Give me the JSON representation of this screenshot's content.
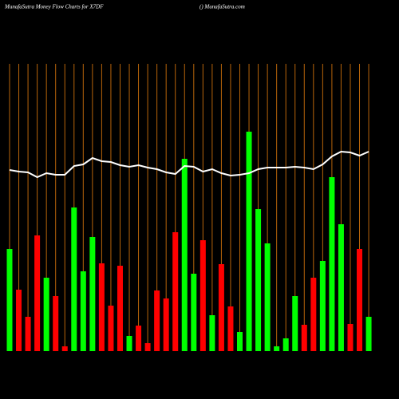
{
  "chart_data": {
    "type": "bar",
    "title": "MunafaSutra  Money Flow  Charts for X7DF",
    "subtitle": "() MunafaSutra.com",
    "categories": [
      null,
      null,
      null,
      null,
      null,
      null,
      null,
      null,
      null,
      null,
      null,
      null,
      null,
      null,
      null,
      null,
      null,
      null,
      null,
      null,
      null,
      null,
      null,
      null,
      null,
      null,
      null,
      null,
      null,
      null,
      null,
      null,
      null,
      null,
      null,
      null,
      null,
      null,
      null,
      null
    ],
    "values": [
      128,
      77,
      43,
      145,
      92,
      69,
      6,
      180,
      100,
      143,
      110,
      57,
      107,
      19,
      32,
      10,
      76,
      66,
      149,
      241,
      97,
      139,
      45,
      109,
      56,
      24,
      275,
      178,
      135,
      6,
      16,
      69,
      33,
      92,
      113,
      218,
      159,
      34,
      128,
      43
    ],
    "colors": [
      "#00ff00",
      "#ff0000",
      "#ff0000",
      "#ff0000",
      "#00ff00",
      "#ff0000",
      "#ff0000",
      "#00ff00",
      "#00ff00",
      "#00ff00",
      "#ff0000",
      "#ff0000",
      "#ff0000",
      "#00ff00",
      "#ff0000",
      "#ff0000",
      "#ff0000",
      "#ff0000",
      "#ff0000",
      "#00ff00",
      "#00ff00",
      "#ff0000",
      "#00ff00",
      "#ff0000",
      "#ff0000",
      "#00ff00",
      "#00ff00",
      "#00ff00",
      "#00ff00",
      "#00ff00",
      "#00ff00",
      "#00ff00",
      "#ff0000",
      "#ff0000",
      "#00ff00",
      "#00ff00",
      "#00ff00",
      "#ff0000",
      "#ff0000",
      "#00ff00"
    ],
    "line": {
      "color": "#ffffff",
      "values": [
        227,
        225,
        224,
        218,
        223,
        221,
        221,
        232,
        234,
        242,
        238,
        237,
        233,
        231,
        233,
        230,
        228,
        224,
        222,
        232,
        231,
        225,
        228,
        223,
        220,
        221,
        223,
        228,
        230,
        230,
        230,
        231,
        230,
        228,
        234,
        244,
        250,
        249,
        245,
        250
      ]
    },
    "grid_color": "#b8650a",
    "ylim": [
      0,
      360
    ]
  }
}
